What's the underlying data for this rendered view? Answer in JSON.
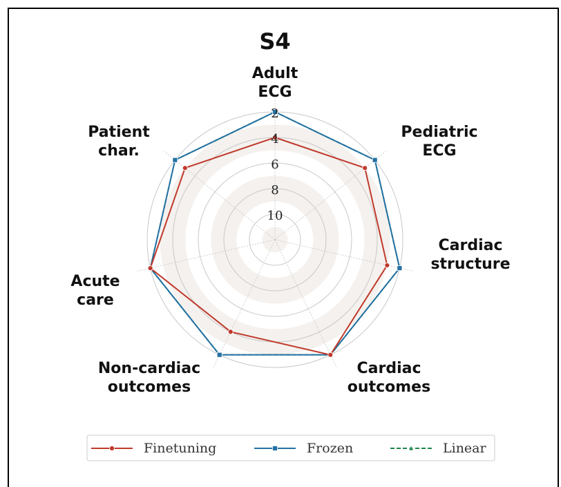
{
  "chart_data": {
    "type": "radar",
    "title": "S4",
    "categories": [
      "Adult\nECG",
      "Pediatric\nECG",
      "Cardiac\nstructure",
      "Cardiac\noutcomes",
      "Non-cardiac\noutcomes",
      "Acute\ncare",
      "Patient\nchar."
    ],
    "ylim": [
      12,
      2
    ],
    "yticks": [
      2,
      4,
      6,
      8,
      10
    ],
    "series": [
      {
        "name": "Finetuning",
        "color": "#c0392b",
        "marker": "circle",
        "linestyle": "solid",
        "values": [
          4,
          3,
          3,
          2,
          4,
          2,
          3
        ]
      },
      {
        "name": "Frozen",
        "color": "#2471a3",
        "marker": "square",
        "linestyle": "solid",
        "values": [
          2,
          2,
          2,
          2,
          2,
          2,
          2
        ]
      },
      {
        "name": "Linear",
        "color": "#1e8449",
        "marker": "triangle",
        "linestyle": "dashed",
        "values": [
          2,
          2,
          2,
          2,
          2,
          2,
          2
        ]
      }
    ],
    "legend": "bottom"
  }
}
